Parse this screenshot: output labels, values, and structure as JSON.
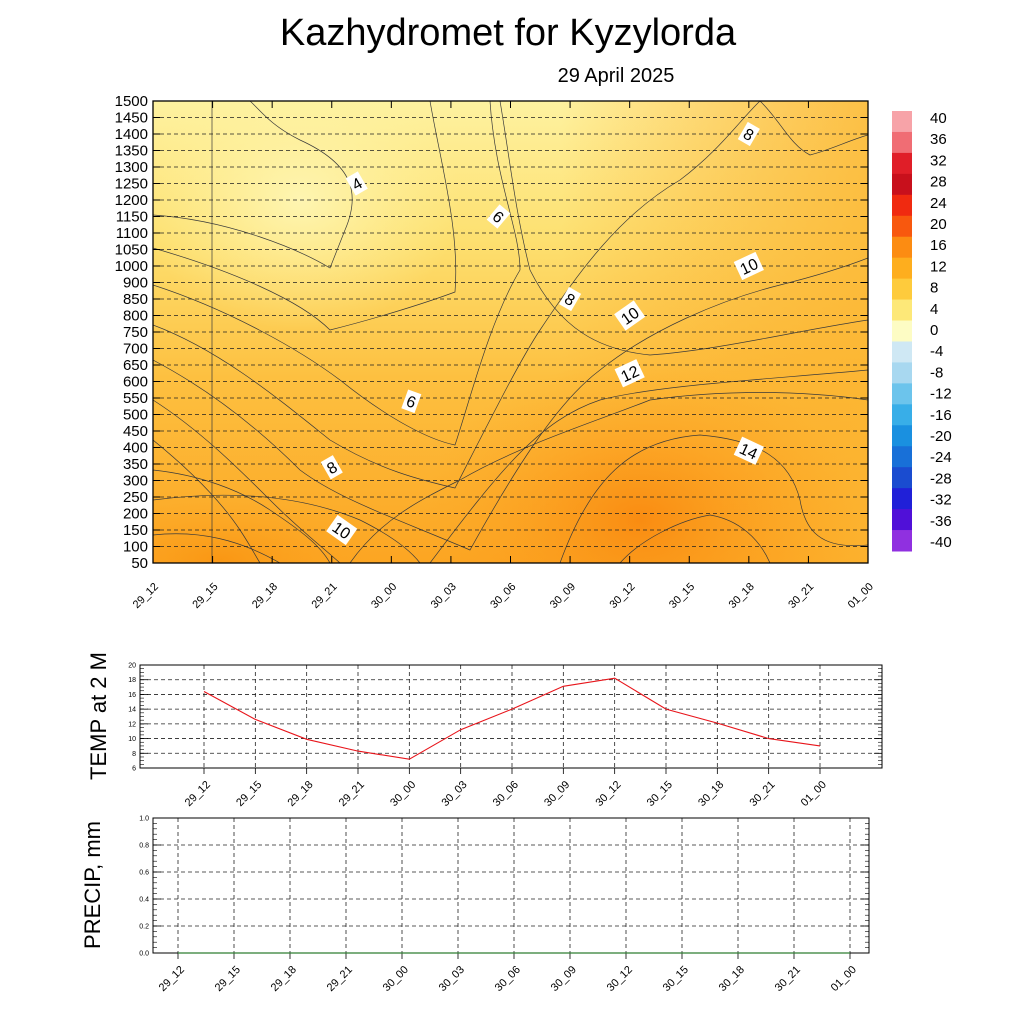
{
  "title": "Kazhydromet  for Kyzylorda",
  "subtitle": "29 April 2025",
  "colors": {
    "temp_line": "#e8141a",
    "precip_line": "#2e7d32"
  },
  "chart_data": [
    {
      "type": "heatmap",
      "name": "temperature-cross-section",
      "x_ticks": [
        "29_12",
        "29_15",
        "29_18",
        "29_21",
        "30_00",
        "30_03",
        "30_06",
        "30_09",
        "30_12",
        "30_15",
        "30_18",
        "30_21",
        "01_00"
      ],
      "y_ticks": [
        1500,
        1450,
        1400,
        1350,
        1300,
        1250,
        1200,
        1150,
        1100,
        1050,
        1000,
        900,
        850,
        800,
        750,
        700,
        650,
        600,
        550,
        500,
        450,
        400,
        350,
        300,
        250,
        200,
        150,
        100,
        50
      ],
      "colorbar": {
        "levels": [
          40,
          36,
          32,
          28,
          24,
          20,
          16,
          12,
          8,
          4,
          0,
          -4,
          -8,
          -12,
          -16,
          -20,
          -24,
          -28,
          -32,
          -36,
          -40
        ],
        "colors": [
          "#f7a3a8",
          "#f06d74",
          "#e01e28",
          "#c8101c",
          "#f02a10",
          "#f8580e",
          "#fc8c12",
          "#feae1e",
          "#fecb3c",
          "#fde878",
          "#fdfcc4",
          "#cfe8f4",
          "#a8d8f0",
          "#6cc4ec",
          "#38aee8",
          "#1a90e0",
          "#1870d8",
          "#1a4cd0",
          "#2020d8",
          "#5010d8",
          "#9030e0"
        ]
      },
      "contour_labels": [
        {
          "text": "4",
          "x": "29_21",
          "y": 1250
        },
        {
          "text": "6",
          "x": "30_06",
          "y": 1150
        },
        {
          "text": "8",
          "x": "30_18",
          "y": 1400
        },
        {
          "text": "10",
          "x": "30_18",
          "y": 1000
        },
        {
          "text": "8",
          "x": "30_09",
          "y": 850
        },
        {
          "text": "10",
          "x": "30_12",
          "y": 800
        },
        {
          "text": "12",
          "x": "30_12",
          "y": 625
        },
        {
          "text": "6",
          "x": "30_00",
          "y": 540
        },
        {
          "text": "14",
          "x": "30_18",
          "y": 390
        },
        {
          "text": "8",
          "x": "29_21",
          "y": 340
        },
        {
          "text": "10",
          "x": "29_21",
          "y": 150
        }
      ]
    },
    {
      "type": "line",
      "name": "temp-2m",
      "ylabel": "TEMP at 2 M",
      "x": [
        "29_12",
        "29_15",
        "29_18",
        "29_21",
        "30_00",
        "30_03",
        "30_06",
        "30_09",
        "30_12",
        "30_15",
        "30_18",
        "30_21",
        "01_00"
      ],
      "values": [
        16.4,
        12.6,
        9.9,
        8.3,
        7.2,
        11.2,
        14.0,
        17.1,
        18.2,
        14.0,
        12.1,
        10.0,
        9.0
      ],
      "y_ticks": [
        6,
        8,
        10,
        12,
        14,
        16,
        18,
        20
      ],
      "ylim": [
        6,
        20
      ]
    },
    {
      "type": "line",
      "name": "precip",
      "ylabel": "PRECIP, mm",
      "x": [
        "29_12",
        "29_15",
        "29_18",
        "29_21",
        "30_00",
        "30_03",
        "30_06",
        "30_09",
        "30_12",
        "30_15",
        "30_18",
        "30_21",
        "01_00"
      ],
      "values": [
        0,
        0,
        0,
        0,
        0,
        0,
        0,
        0,
        0,
        0,
        0,
        0,
        0
      ],
      "y_ticks": [
        "0.0",
        "0.2",
        "0.4",
        "0.6",
        "0.8",
        "1.0"
      ],
      "ylim": [
        0,
        1
      ]
    }
  ]
}
